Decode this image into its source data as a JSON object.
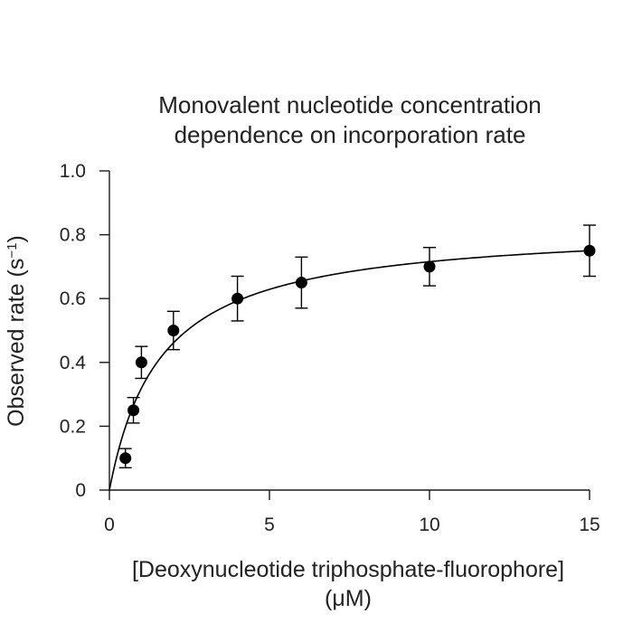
{
  "chart_data": {
    "type": "scatter",
    "title": [
      "Monovalent nucleotide concentration",
      "dependence on incorporation rate"
    ],
    "xlabel": [
      "[Deoxynucleotide triphosphate-fluorophore]",
      "(μM)"
    ],
    "ylabel": "Observed rate (s",
    "ylabel_superscript": "−1",
    "ylabel_close": ")",
    "xlim": [
      0,
      15
    ],
    "ylim": [
      0,
      1.0
    ],
    "x_ticks": [
      0,
      5,
      10,
      15
    ],
    "x_tick_labels": [
      "0",
      "5",
      "10",
      "15"
    ],
    "y_ticks": [
      0,
      0.2,
      0.4,
      0.6,
      0.8,
      1.0
    ],
    "y_tick_labels": [
      "0",
      "0.2",
      "0.4",
      "0.6",
      "0.8",
      "1.0"
    ],
    "grid": false,
    "legend": "none",
    "series": [
      {
        "x": [
          0.5,
          0.75,
          1,
          2,
          4,
          6,
          10,
          15
        ],
        "y": [
          0.1,
          0.25,
          0.4,
          0.5,
          0.6,
          0.65,
          0.7,
          0.75
        ],
        "error": [
          0.03,
          0.04,
          0.05,
          0.06,
          0.07,
          0.08,
          0.06,
          0.08
        ]
      }
    ],
    "fit": {
      "type": "hyperbolic",
      "vmax": 0.83,
      "k": 1.6
    },
    "colors": {
      "points": "#000000",
      "curve": "#000000",
      "axes": "#1a1a1a"
    }
  }
}
